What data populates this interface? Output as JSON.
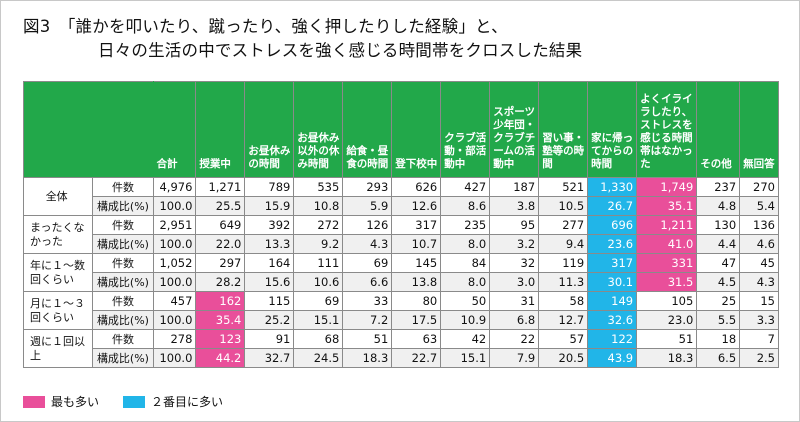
{
  "title": {
    "line1": "図3　「誰かを叩いたり、蹴ったり、強く押したりした経験」と、",
    "line2": "日々の生活の中でストレスを強く感じる時間帯をクロスした結果"
  },
  "headers": [
    "合計",
    "授業中",
    "お昼休みの時間",
    "お昼休み以外の休み時間",
    "給食・昼食の時間",
    "登下校中",
    "クラブ活動・部活動中",
    "スポーツ少年団・クラブチームの活動中",
    "習い事・塾等の時間",
    "家に帰ってからの時間",
    "よくイライラしたり、ストレスを感じる時間帯はなかった",
    "その他",
    "無回答"
  ],
  "groups": [
    {
      "label": "全体",
      "rows": [
        {
          "sub": "件数",
          "values": [
            "4,976",
            "1,271",
            "789",
            "535",
            "293",
            "626",
            "427",
            "187",
            "521",
            "1,330",
            "1,749",
            "237",
            "270"
          ],
          "hl": [
            "",
            "",
            "",
            "",
            "",
            "",
            "",
            "",
            "",
            "blue",
            "pink",
            "",
            ""
          ]
        },
        {
          "sub": "構成比(%)",
          "values": [
            "100.0",
            "25.5",
            "15.9",
            "10.8",
            "5.9",
            "12.6",
            "8.6",
            "3.8",
            "10.5",
            "26.7",
            "35.1",
            "4.8",
            "5.4"
          ],
          "hl": [
            "",
            "",
            "",
            "",
            "",
            "",
            "",
            "",
            "",
            "blue",
            "pink",
            "",
            ""
          ]
        }
      ]
    },
    {
      "label": "まったくなかった",
      "rows": [
        {
          "sub": "件数",
          "values": [
            "2,951",
            "649",
            "392",
            "272",
            "126",
            "317",
            "235",
            "95",
            "277",
            "696",
            "1,211",
            "130",
            "136"
          ],
          "hl": [
            "",
            "",
            "",
            "",
            "",
            "",
            "",
            "",
            "",
            "blue",
            "pink",
            "",
            ""
          ]
        },
        {
          "sub": "構成比(%)",
          "values": [
            "100.0",
            "22.0",
            "13.3",
            "9.2",
            "4.3",
            "10.7",
            "8.0",
            "3.2",
            "9.4",
            "23.6",
            "41.0",
            "4.4",
            "4.6"
          ],
          "hl": [
            "",
            "",
            "",
            "",
            "",
            "",
            "",
            "",
            "",
            "blue",
            "pink",
            "",
            ""
          ]
        }
      ]
    },
    {
      "label": "年に１～数回くらい",
      "rows": [
        {
          "sub": "件数",
          "values": [
            "1,052",
            "297",
            "164",
            "111",
            "69",
            "145",
            "84",
            "32",
            "119",
            "317",
            "331",
            "47",
            "45"
          ],
          "hl": [
            "",
            "",
            "",
            "",
            "",
            "",
            "",
            "",
            "",
            "blue",
            "pink",
            "",
            ""
          ]
        },
        {
          "sub": "構成比(%)",
          "values": [
            "100.0",
            "28.2",
            "15.6",
            "10.6",
            "6.6",
            "13.8",
            "8.0",
            "3.0",
            "11.3",
            "30.1",
            "31.5",
            "4.5",
            "4.3"
          ],
          "hl": [
            "",
            "",
            "",
            "",
            "",
            "",
            "",
            "",
            "",
            "blue",
            "pink",
            "",
            ""
          ]
        }
      ]
    },
    {
      "label": "月に１～３回くらい",
      "rows": [
        {
          "sub": "件数",
          "values": [
            "457",
            "162",
            "115",
            "69",
            "33",
            "80",
            "50",
            "31",
            "58",
            "149",
            "105",
            "25",
            "15"
          ],
          "hl": [
            "",
            "pink",
            "",
            "",
            "",
            "",
            "",
            "",
            "",
            "blue",
            "",
            "",
            ""
          ]
        },
        {
          "sub": "構成比(%)",
          "values": [
            "100.0",
            "35.4",
            "25.2",
            "15.1",
            "7.2",
            "17.5",
            "10.9",
            "6.8",
            "12.7",
            "32.6",
            "23.0",
            "5.5",
            "3.3"
          ],
          "hl": [
            "",
            "pink",
            "",
            "",
            "",
            "",
            "",
            "",
            "",
            "blue",
            "",
            "",
            ""
          ]
        }
      ]
    },
    {
      "label": "週に１回以上",
      "rows": [
        {
          "sub": "件数",
          "values": [
            "278",
            "123",
            "91",
            "68",
            "51",
            "63",
            "42",
            "22",
            "57",
            "122",
            "51",
            "18",
            "7"
          ],
          "hl": [
            "",
            "pink",
            "",
            "",
            "",
            "",
            "",
            "",
            "",
            "blue",
            "",
            "",
            ""
          ]
        },
        {
          "sub": "構成比(%)",
          "values": [
            "100.0",
            "44.2",
            "32.7",
            "24.5",
            "18.3",
            "22.7",
            "15.1",
            "7.9",
            "20.5",
            "43.9",
            "18.3",
            "6.5",
            "2.5"
          ],
          "hl": [
            "",
            "pink",
            "",
            "",
            "",
            "",
            "",
            "",
            "",
            "blue",
            "",
            "",
            ""
          ]
        }
      ]
    }
  ],
  "legend": [
    {
      "label": "最も多い",
      "color": "#e94f9a"
    },
    {
      "label": "２番目に多い",
      "color": "#21b5e8"
    }
  ]
}
